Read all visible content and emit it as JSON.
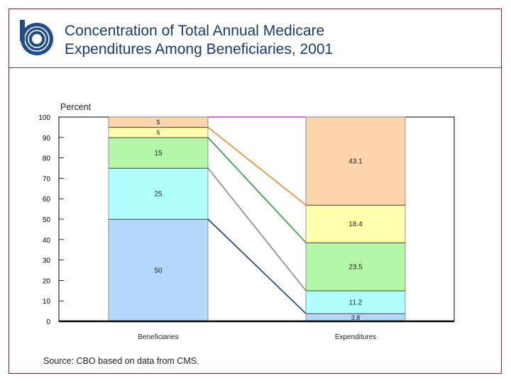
{
  "header": {
    "title_line1": "Concentration of Total Annual Medicare",
    "title_line2": "Expenditures Among Beneficiaries, 2001",
    "logo": "cbo-logo"
  },
  "source": "Source: CBO based on data from CMS.",
  "chart_data": {
    "type": "bar",
    "stacked": true,
    "title": "Concentration of Total Annual Medicare Expenditures Among Beneficiaries, 2001",
    "ylabel": "Percent",
    "ylim": [
      0,
      100
    ],
    "yticks": [
      "0",
      "10",
      "20",
      "30",
      "40",
      "50",
      "60",
      "70",
      "80",
      "90",
      "100"
    ],
    "categories": [
      "Beneficiaries",
      "Expenditures"
    ],
    "series": [
      {
        "values": [
          50,
          3.8
        ],
        "labels": [
          "50",
          "3.8"
        ],
        "color": "#b4d8fc",
        "connector_color": "#1a3d7a"
      },
      {
        "values": [
          25,
          11.2
        ],
        "labels": [
          "25",
          "11.2"
        ],
        "color": "#b0ffff",
        "connector_color": "#888888"
      },
      {
        "values": [
          15,
          23.5
        ],
        "labels": [
          "15",
          "23.5"
        ],
        "color": "#b4f7a8",
        "connector_color": "#2a9a3a"
      },
      {
        "values": [
          5,
          18.4
        ],
        "labels": [
          "5",
          "18.4"
        ],
        "color": "#ffffb0",
        "connector_color": "#e8892a"
      },
      {
        "values": [
          5,
          43.1
        ],
        "labels": [
          "5",
          "43.1"
        ],
        "color": "#fdd5ad",
        "connector_color": "#cc44cc"
      }
    ],
    "grid": false,
    "legend": "none"
  }
}
